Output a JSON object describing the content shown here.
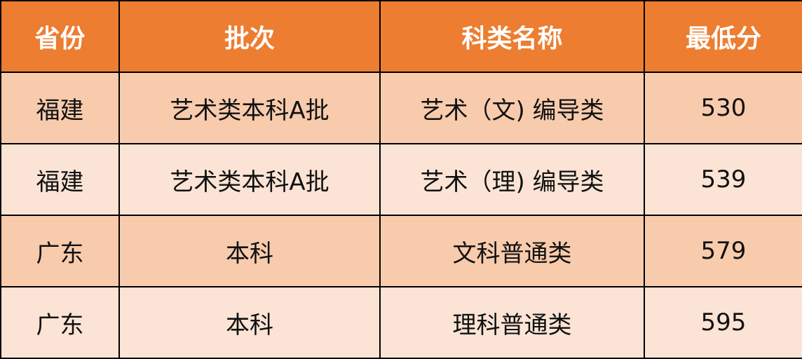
{
  "table": {
    "headers": [
      "省份",
      "批次",
      "科类名称",
      "最低分"
    ],
    "rows": [
      [
        "福建",
        "艺术类本科A批",
        "艺术（文) 编导类",
        "530"
      ],
      [
        "福建",
        "艺术类本科A批",
        "艺术（理) 编导类",
        "539"
      ],
      [
        "广东",
        "本科",
        "文科普通类",
        "579"
      ],
      [
        "广东",
        "本科",
        "理科普通类",
        "595"
      ]
    ]
  },
  "colors": {
    "header": "#ED7D31",
    "row_odd": "#F8CBAD",
    "row_even": "#FBE4D5"
  }
}
